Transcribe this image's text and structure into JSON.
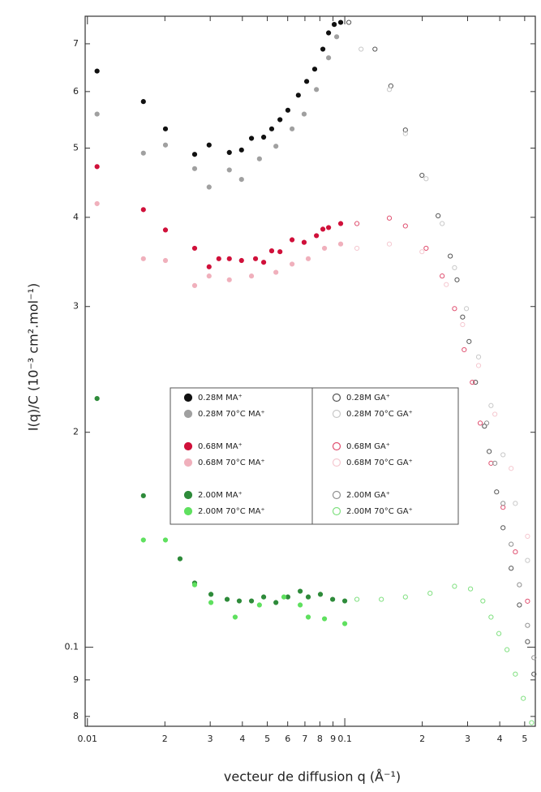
{
  "chart_data": {
    "type": "scatter",
    "xlabel": "vecteur de diffusion q (Å⁻¹)",
    "ylabel": "I(q)/C (10⁻³ cm².mol⁻¹)",
    "xscale": "log",
    "yscale": "log",
    "legend": "center",
    "xlim": [
      0.0098,
      0.55
    ],
    "ylim": [
      0.0775,
      0.765
    ],
    "xticks": [
      0.01,
      {
        "value": 0.02,
        "label": "2"
      },
      {
        "value": 0.03,
        "label": "3"
      },
      {
        "value": 0.04,
        "label": "4"
      },
      {
        "value": 0.05,
        "label": "5"
      },
      {
        "value": 0.06,
        "label": "6"
      },
      {
        "value": 0.07,
        "label": "7"
      },
      {
        "value": 0.08,
        "label": "8"
      },
      {
        "value": 0.09,
        "label": "9"
      },
      0.1,
      {
        "value": 0.2,
        "label": "2"
      },
      {
        "value": 0.3,
        "label": "3"
      },
      {
        "value": 0.4,
        "label": "4"
      },
      {
        "value": 0.5,
        "label": "5"
      }
    ],
    "yticks": [
      {
        "value": 0.08,
        "label": "8"
      },
      {
        "value": 0.09,
        "label": "9"
      },
      0.1,
      {
        "value": 0.2,
        "label": "2"
      },
      {
        "value": 0.3,
        "label": "3"
      },
      {
        "value": 0.4,
        "label": "4"
      },
      {
        "value": 0.5,
        "label": "5"
      },
      {
        "value": 0.6,
        "label": "6"
      },
      {
        "value": 0.7,
        "label": "7"
      }
    ],
    "series": [
      {
        "name": "0.28M MA⁺",
        "color": "#111111",
        "filled": true,
        "x": [
          0.0109,
          0.0165,
          0.0201,
          0.0261,
          0.0297,
          0.0356,
          0.0397,
          0.0434,
          0.0484,
          0.052,
          0.056,
          0.0601,
          0.066,
          0.0711,
          0.0764,
          0.0822,
          0.0865,
          0.091,
          0.0964
        ],
        "values": [
          0.641,
          0.581,
          0.532,
          0.49,
          0.505,
          0.493,
          0.497,
          0.516,
          0.518,
          0.532,
          0.548,
          0.565,
          0.593,
          0.62,
          0.645,
          0.688,
          0.725,
          0.745,
          0.75
        ]
      },
      {
        "name": "0.28M 70°C MA⁺",
        "color": "#a0a0a0",
        "filled": true,
        "x": [
          0.0109,
          0.0165,
          0.0201,
          0.0261,
          0.0297,
          0.0356,
          0.0397,
          0.0466,
          0.054,
          0.0624,
          0.0695,
          0.0776,
          0.0865,
          0.093
        ],
        "values": [
          0.558,
          0.492,
          0.505,
          0.468,
          0.441,
          0.466,
          0.452,
          0.483,
          0.503,
          0.532,
          0.558,
          0.604,
          0.669,
          0.716
        ]
      },
      {
        "name": "0.68M MA⁺",
        "color": "#d0103a",
        "filled": true,
        "x": [
          0.0109,
          0.0165,
          0.0201,
          0.0261,
          0.0297,
          0.0324,
          0.0356,
          0.0397,
          0.045,
          0.0484,
          0.052,
          0.056,
          0.0624,
          0.0695,
          0.0776,
          0.0822,
          0.0865,
          0.0964
        ],
        "values": [
          0.471,
          0.41,
          0.384,
          0.362,
          0.341,
          0.35,
          0.35,
          0.348,
          0.35,
          0.346,
          0.359,
          0.358,
          0.372,
          0.369,
          0.377,
          0.385,
          0.387,
          0.392
        ]
      },
      {
        "name": "0.68M 70°C MA⁺",
        "color": "#f0b0bc",
        "filled": true,
        "x": [
          0.0109,
          0.0165,
          0.0201,
          0.0261,
          0.0297,
          0.0356,
          0.0434,
          0.054,
          0.0624,
          0.0721,
          0.0834,
          0.0964
        ],
        "values": [
          0.418,
          0.35,
          0.348,
          0.321,
          0.331,
          0.327,
          0.331,
          0.335,
          0.344,
          0.35,
          0.362,
          0.367
        ]
      },
      {
        "name": "2.00M MA⁺",
        "color": "#2e8b3a",
        "filled": true,
        "x": [
          0.0109,
          0.0165,
          0.0229,
          0.0261,
          0.0302,
          0.0349,
          0.0389,
          0.0434,
          0.0484,
          0.054,
          0.0601,
          0.0671,
          0.0721,
          0.0804,
          0.0897,
          0.1
        ],
        "values": [
          0.223,
          0.163,
          0.133,
          0.123,
          0.1186,
          0.1167,
          0.1161,
          0.1161,
          0.1176,
          0.1155,
          0.1176,
          0.1198,
          0.1176,
          0.1186,
          0.1167,
          0.1161
        ]
      },
      {
        "name": "2.00M 70°C MA⁺",
        "color": "#5fe05f",
        "filled": true,
        "x": [
          0.0165,
          0.0201,
          0.0261,
          0.0302,
          0.0375,
          0.0466,
          0.058,
          0.0671,
          0.0721,
          0.0834,
          0.1
        ],
        "values": [
          0.1413,
          0.1413,
          0.1223,
          0.1155,
          0.1102,
          0.1146,
          0.1176,
          0.1146,
          0.1102,
          0.1096,
          0.1079
        ]
      },
      {
        "name": "0.28M GA⁺",
        "color": "#555555",
        "filled": false,
        "x": [
          0.1037,
          0.131,
          0.151,
          0.172,
          0.1995,
          0.2305,
          0.257,
          0.273,
          0.287,
          0.304,
          0.322,
          0.349,
          0.364,
          0.389,
          0.412,
          0.443,
          0.477,
          0.513,
          0.543
        ],
        "values": [
          0.75,
          0.688,
          0.611,
          0.53,
          0.458,
          0.402,
          0.353,
          0.327,
          0.29,
          0.268,
          0.235,
          0.204,
          0.188,
          0.165,
          0.147,
          0.129,
          0.1146,
          0.1018,
          0.0917
        ]
      },
      {
        "name": "0.28M 70°C GA⁺",
        "color": "#c8c8c8",
        "filled": false,
        "x": [
          0.1157,
          0.149,
          0.172,
          0.207,
          0.239,
          0.267,
          0.297,
          0.331,
          0.37,
          0.412,
          0.46,
          0.513
        ],
        "values": [
          0.688,
          0.604,
          0.524,
          0.453,
          0.392,
          0.34,
          0.298,
          0.255,
          0.218,
          0.186,
          0.159,
          0.1323
        ]
      },
      {
        "name": "0.68M GA⁺",
        "color": "#e05070",
        "filled": false,
        "x": [
          0.1115,
          0.149,
          0.172,
          0.207,
          0.239,
          0.267,
          0.291,
          0.313,
          0.336,
          0.37,
          0.412,
          0.46,
          0.513
        ],
        "values": [
          0.392,
          0.399,
          0.389,
          0.362,
          0.331,
          0.298,
          0.261,
          0.235,
          0.206,
          0.181,
          0.157,
          0.136,
          0.116
        ]
      },
      {
        "name": "0.68M 70°C GA⁺",
        "color": "#f5c8d0",
        "filled": false,
        "x": [
          0.1115,
          0.149,
          0.1995,
          0.248,
          0.287,
          0.331,
          0.383,
          0.443,
          0.513
        ],
        "values": [
          0.362,
          0.367,
          0.358,
          0.322,
          0.283,
          0.248,
          0.212,
          0.178,
          0.143
        ]
      },
      {
        "name": "2.00M GA⁺",
        "color": "#909090",
        "filled": false,
        "x": [
          0.356,
          0.383,
          0.412,
          0.443,
          0.477,
          0.513,
          0.543
        ],
        "values": [
          0.206,
          0.181,
          0.159,
          0.1394,
          0.1223,
          0.1073,
          0.0967
        ]
      },
      {
        "name": "2.00M 70°C GA⁺",
        "color": "#80e080",
        "filled": false,
        "x": [
          0.1115,
          0.1387,
          0.172,
          0.2145,
          0.267,
          0.308,
          0.344,
          0.37,
          0.397,
          0.427,
          0.46,
          0.494,
          0.532
        ],
        "values": [
          0.1167,
          0.1167,
          0.1176,
          0.119,
          0.1217,
          0.1207,
          0.1161,
          0.1102,
          0.1045,
          0.0992,
          0.0917,
          0.0848,
          0.0784
        ]
      }
    ]
  }
}
